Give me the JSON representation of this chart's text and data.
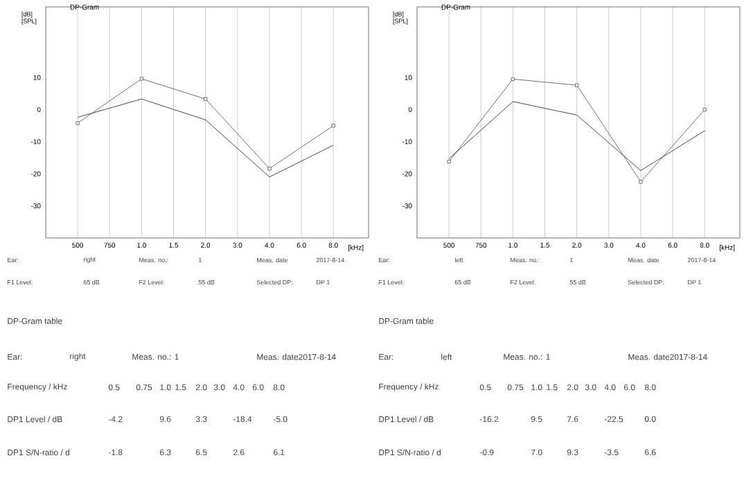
{
  "chart_data": [
    {
      "type": "line",
      "title": "DP-Gram",
      "xlabel": "[kHz]",
      "ylabel": "[dB] [SPL]",
      "grid": "x",
      "ylim": [
        -40,
        32
      ],
      "categories": [
        "500",
        "750",
        "1.0",
        "1.5",
        "2.0",
        "3.0",
        "4.0",
        "6.0",
        "8.0"
      ],
      "yticks": [
        10,
        0,
        -10,
        -20,
        -30
      ],
      "series": [
        {
          "color": "#6e6e6e",
          "marker": "square",
          "values": [
            -4.2,
            null,
            9.6,
            null,
            3.3,
            null,
            -18.4,
            null,
            -5.0
          ]
        },
        {
          "color": "#4a4a4a",
          "marker": "none",
          "values": [
            -2.4,
            null,
            3.3,
            null,
            -3.2,
            null,
            -21.0,
            null,
            -11.1
          ]
        }
      ],
      "annotations": [
        "Ear:",
        "right",
        "Meas. no.:",
        "1",
        "Meas. date",
        "2017-8-14",
        "F1 Level:",
        "65 dB",
        "F2 Level:",
        "55 dB",
        "Selected DP:",
        "DP 1",
        "DP-Gram table",
        "Ear:",
        "right",
        "Meas. no.: 1",
        "Meas. date2017-8-14",
        "Frequency / kHz",
        "0.5",
        "0.75",
        "1.0",
        "1.5",
        "2.0",
        "3.0",
        "4.0",
        "6.0",
        "8.0",
        "DP1 Level / dB",
        "-4.2",
        "9.6",
        "3.3",
        "-18.4",
        "-5.0",
        "DP1 S/N-ratio / d",
        "-1.8",
        "6.3",
        "6.5",
        "2.6",
        "6.1"
      ]
    },
    {
      "type": "line",
      "title": "DP-Gram",
      "xlabel": "[kHz]",
      "ylabel": "[dB] [SPL]",
      "grid": "x",
      "ylim": [
        -40,
        32
      ],
      "categories": [
        "500",
        "750",
        "1.0",
        "1.5",
        "2.0",
        "3.0",
        "4.0",
        "6.0",
        "8.0"
      ],
      "yticks": [
        10,
        0,
        -10,
        -20,
        -30
      ],
      "series": [
        {
          "color": "#6e6e6e",
          "marker": "square",
          "values": [
            -16.2,
            null,
            9.5,
            null,
            7.6,
            null,
            -22.5,
            null,
            0.0
          ]
        },
        {
          "color": "#4a4a4a",
          "marker": "none",
          "values": [
            -15.3,
            null,
            2.5,
            null,
            -1.7,
            null,
            -19.0,
            null,
            -6.6
          ]
        }
      ],
      "annotations": [
        "Ear:",
        "left",
        "Meas. no.:",
        "1",
        "Meas. date",
        "2017-8-14",
        "F1 Level:",
        "65 dB",
        "F2 Level:",
        "55 dB",
        "Selected DP:",
        "DP 1",
        "DP-Gram table",
        "Ear:",
        "left",
        "Meas. no.: 1",
        "Meas. date2017-8-14",
        "Frequency / kHz",
        "0.5",
        "0.75",
        "1.0",
        "1.5",
        "2.0",
        "3.0",
        "4.0",
        "6.0",
        "8.0",
        "DP1 Level / dB",
        "-16.2",
        "9.5",
        "7.6",
        "-22.5",
        "0.0",
        "DP1 S/N-ratio / d",
        "-0.9",
        "7.0",
        "9.3",
        "-3.5",
        "6.6"
      ]
    }
  ]
}
